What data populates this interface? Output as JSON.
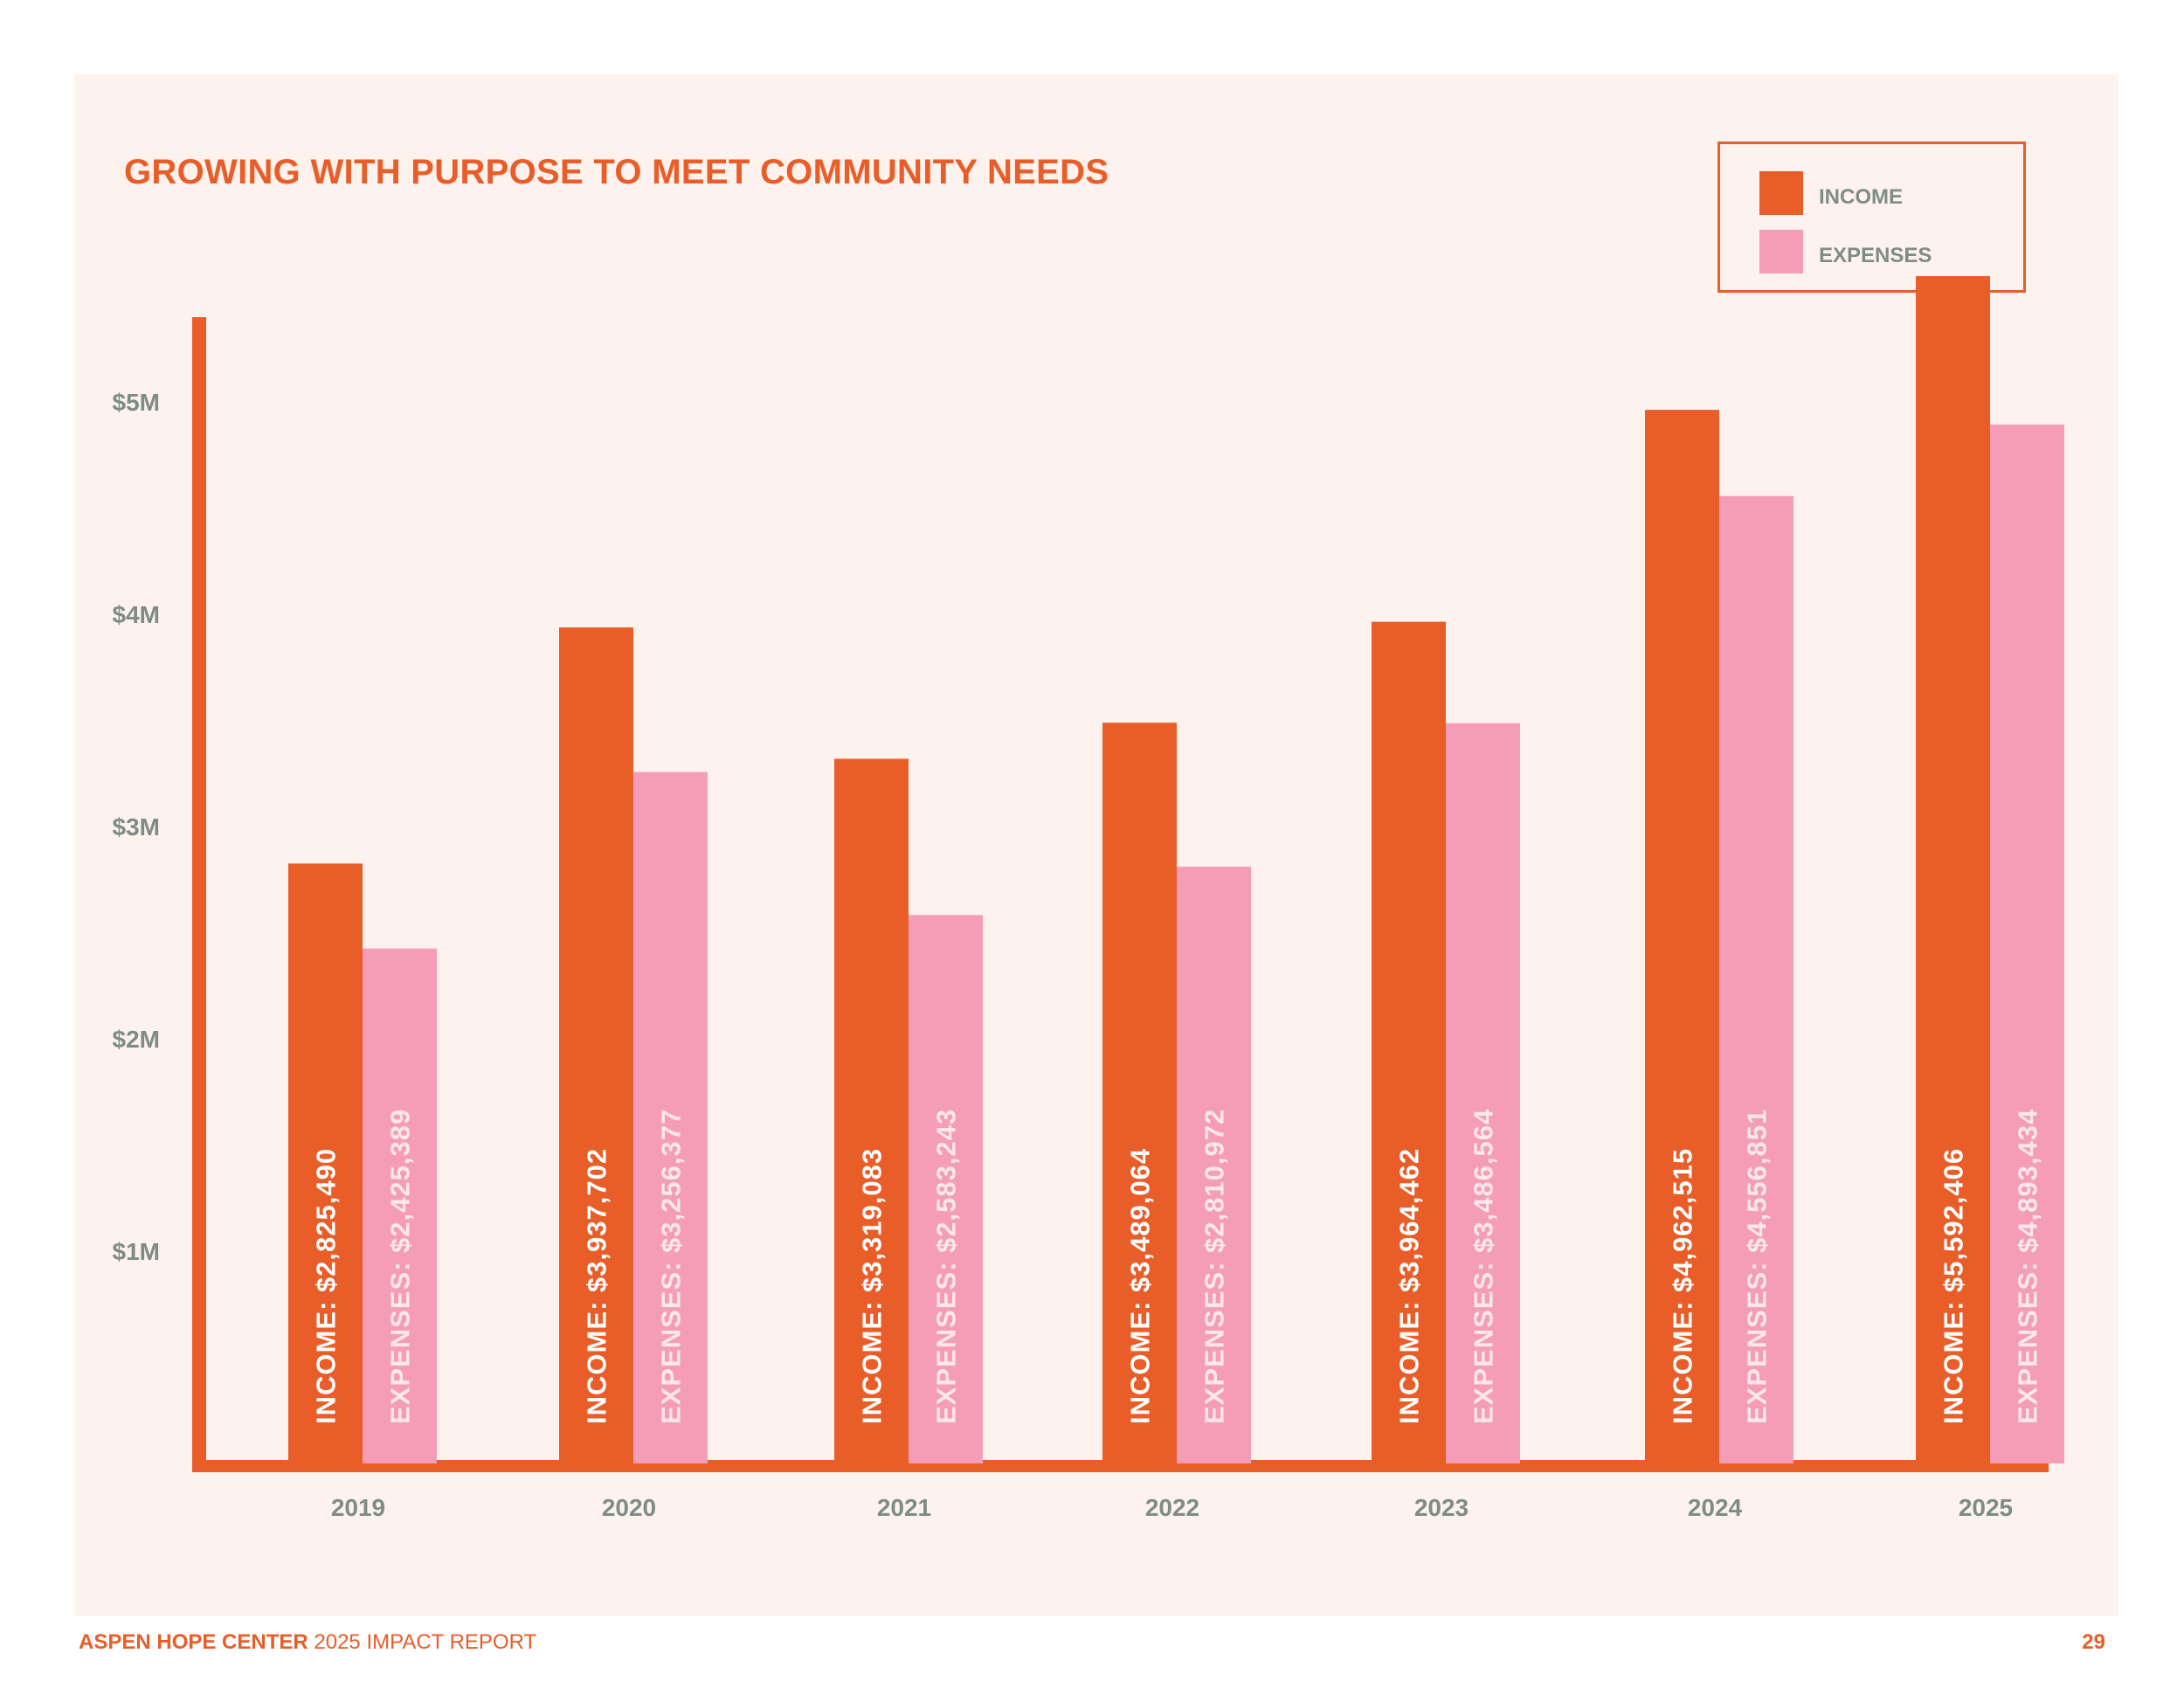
{
  "colors": {
    "income": "#e85d28",
    "expenses": "#f59cb7",
    "axis": "#e85d28",
    "label": "#7f8c86",
    "background": "#fdf2ee"
  },
  "legend": {
    "income": "INCOME",
    "expenses": "EXPENSES"
  },
  "footer": {
    "org": "ASPEN HOPE CENTER",
    "report": " 2025 IMPACT REPORT",
    "page": "29"
  },
  "chart_data": {
    "type": "bar",
    "title": "GROWING WITH PURPOSE TO MEET COMMUNITY NEEDS",
    "categories": [
      "2019",
      "2020",
      "2021",
      "2022",
      "2023",
      "2024",
      "2025"
    ],
    "series": [
      {
        "name": "INCOME",
        "values": [
          2825490,
          3937702,
          3319083,
          3489064,
          3964462,
          4962515,
          5592406
        ]
      },
      {
        "name": "EXPENSES",
        "values": [
          2425389,
          3256377,
          2583243,
          2810972,
          3486564,
          4556851,
          4893434
        ]
      }
    ],
    "data_labels": {
      "INCOME": [
        "INCOME: $2,825,490",
        "INCOME: $3,937,702",
        "INCOME: $3,319,083",
        "INCOME: $3,489,064",
        "INCOME: $3,964,462",
        "INCOME: $4,962,515",
        "INCOME: $5,592,406"
      ],
      "EXPENSES": [
        "EXPENSES: $2,425,389",
        "EXPENSES: $3,256,377",
        "EXPENSES: $2,583,243",
        "EXPENSES: $2,810,972",
        "EXPENSES: $3,486,564",
        "EXPENSES: $4,556,851",
        "EXPENSES: $4,893,434"
      ]
    },
    "yticks": [
      {
        "value": 1000000,
        "label": "$1M"
      },
      {
        "value": 2000000,
        "label": "$2M"
      },
      {
        "value": 3000000,
        "label": "$3M"
      },
      {
        "value": 4000000,
        "label": "$4M"
      },
      {
        "value": 5000000,
        "label": "$5M"
      }
    ],
    "ylim": [
      0,
      5400000
    ],
    "grid": false,
    "legend_position": "top-right"
  }
}
